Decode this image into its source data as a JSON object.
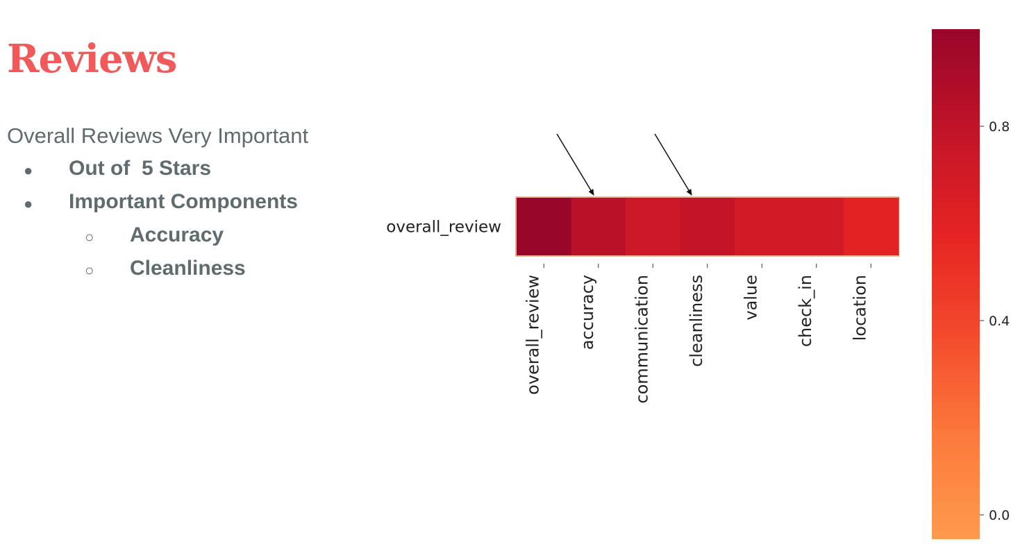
{
  "slide": {
    "title": "Reviews",
    "intro": "Overall Reviews Very Important",
    "bullets": [
      {
        "marker": "●",
        "text": "Out of  5 Stars"
      },
      {
        "marker": "●",
        "text": "Important Components"
      }
    ],
    "sub_bullets": [
      {
        "marker": "○",
        "text": "Accuracy"
      },
      {
        "marker": "○",
        "text": "Cleanliness"
      }
    ]
  },
  "chart_data": {
    "type": "heatmap",
    "row_labels": [
      "overall_review"
    ],
    "column_labels": [
      "overall_review",
      "accuracy",
      "communication",
      "cleanliness",
      "value",
      "check_in",
      "location"
    ],
    "values": [
      [
        1.0,
        0.84,
        0.73,
        0.78,
        0.7,
        0.7,
        0.6
      ]
    ],
    "colorbar": {
      "vmin": -0.05,
      "vmax": 1.0,
      "ticks": [
        0.8,
        0.4,
        0.0
      ],
      "tick_labels": [
        "0.8",
        "0.4",
        "0.0"
      ],
      "colormap_colors": [
        "#fe9a4d",
        "#fc7a3c",
        "#f44a2c",
        "#e52323",
        "#c21428",
        "#98062a"
      ]
    },
    "annotations": "arrows pointing to accuracy and cleanliness"
  }
}
